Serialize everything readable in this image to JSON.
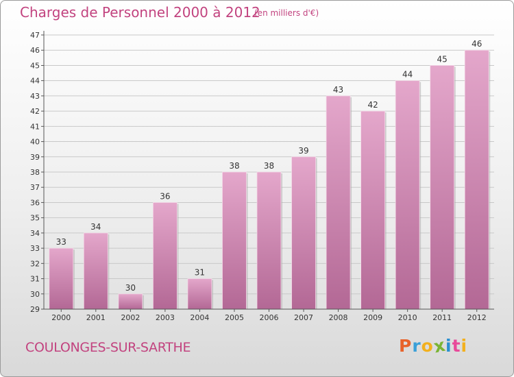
{
  "header": {
    "title": "Charges de Personnel 2000 à 2012",
    "subtitle": "(en milliers d'€)"
  },
  "footer": {
    "commune": "COULONGES-SUR-SARTHE",
    "logo_letters": [
      "P",
      "r",
      "o",
      "x",
      "i",
      "t",
      "i"
    ],
    "logo_colors": [
      "#e8622a",
      "#3aa0d8",
      "#f2b01e",
      "#7ab434",
      "#2a8fd0",
      "#e84a9a",
      "#f2b01e"
    ]
  },
  "colors": {
    "title": "#c2437f",
    "bar_top": "#e4a7cb",
    "bar_bottom": "#b36895",
    "axis": "#555555",
    "grid": "#c8c8c8"
  },
  "chart_data": {
    "type": "bar",
    "categories": [
      "2000",
      "2001",
      "2002",
      "2003",
      "2004",
      "2005",
      "2006",
      "2007",
      "2008",
      "2009",
      "2010",
      "2011",
      "2012"
    ],
    "values": [
      33,
      34,
      30,
      36,
      31,
      38,
      38,
      39,
      43,
      42,
      44,
      45,
      46
    ],
    "ylim": [
      29,
      47
    ],
    "yticks": [
      29,
      30,
      31,
      32,
      33,
      34,
      35,
      36,
      37,
      38,
      39,
      40,
      41,
      42,
      43,
      44,
      45,
      46,
      47
    ],
    "grid": true,
    "data_labels": true
  }
}
